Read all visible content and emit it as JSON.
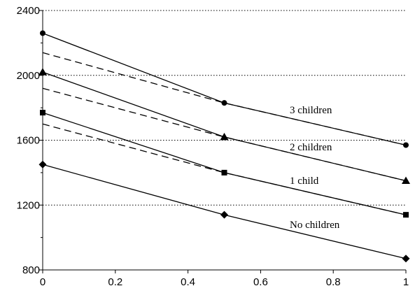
{
  "chart_data": {
    "type": "line",
    "title": "",
    "xlabel": "",
    "ylabel": "",
    "xlim": [
      0,
      1
    ],
    "ylim": [
      800,
      2400
    ],
    "x_ticks": [
      0,
      0.2,
      0.4,
      0.6,
      0.8,
      1
    ],
    "x_tick_labels": [
      "0",
      "0.2",
      "0.4",
      "0.6",
      "0.8",
      "1"
    ],
    "y_ticks": [
      800,
      1200,
      1600,
      2000,
      2400
    ],
    "y_tick_labels": [
      "800",
      "1200",
      "1600",
      "2000",
      "2400"
    ],
    "grid": "horizontal dotted",
    "series": [
      {
        "name": "No children",
        "style": "solid",
        "marker": "diamond",
        "x": [
          0,
          0.5,
          1
        ],
        "y": [
          1450,
          1140,
          870
        ]
      },
      {
        "name": "1 child",
        "style": "solid",
        "marker": "square",
        "x": [
          0,
          0.5,
          1
        ],
        "y": [
          1770,
          1400,
          1140
        ]
      },
      {
        "name": "2 children",
        "style": "solid",
        "marker": "triangle",
        "x": [
          0,
          0.5,
          1
        ],
        "y": [
          2020,
          1620,
          1350
        ]
      },
      {
        "name": "3 children",
        "style": "solid",
        "marker": "circle",
        "x": [
          0,
          0.5,
          1
        ],
        "y": [
          2260,
          1830,
          1570
        ]
      },
      {
        "style": "dashed",
        "marker": "none",
        "x": [
          0,
          0.5,
          1
        ],
        "y": [
          1700,
          1400,
          1140
        ]
      },
      {
        "style": "dashed",
        "marker": "none",
        "x": [
          0,
          0.5,
          1
        ],
        "y": [
          1920,
          1620,
          1350
        ]
      },
      {
        "style": "dashed",
        "marker": "none",
        "x": [
          0,
          0.5,
          1
        ],
        "y": [
          2140,
          1830,
          1570
        ]
      }
    ],
    "annotations": [
      "3 children",
      "2 children",
      "1 child",
      "No children"
    ]
  }
}
